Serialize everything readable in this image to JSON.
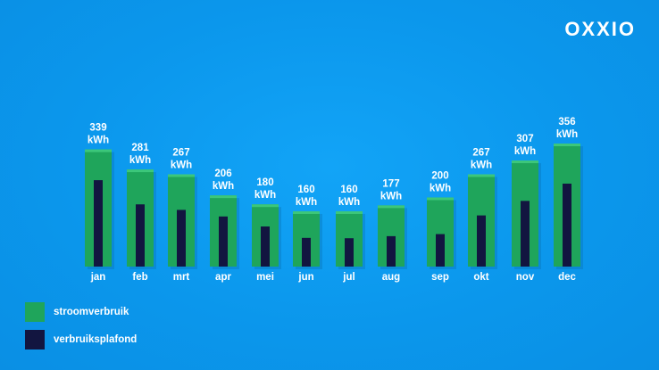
{
  "brand": {
    "logo_text": "OXXIO"
  },
  "colors": {
    "background": "#0b97ec",
    "consumption": "#1fa55b",
    "ceiling": "#121540",
    "text": "#ffffff"
  },
  "legend": [
    {
      "label": "stroomverbruik",
      "color": "#1fa55b"
    },
    {
      "label": "verbruiksplafond",
      "color": "#121540"
    }
  ],
  "chart_data": {
    "type": "bar",
    "categories": [
      "jan",
      "feb",
      "mrt",
      "apr",
      "mei",
      "jun",
      "jul",
      "aug",
      "sep",
      "okt",
      "nov",
      "dec"
    ],
    "unit": "kWh",
    "series": [
      {
        "name": "stroomverbruik",
        "values": [
          339,
          281,
          267,
          206,
          180,
          160,
          160,
          177,
          200,
          267,
          307,
          356
        ]
      },
      {
        "name": "verbruiksplafond",
        "values": [
          250,
          180,
          164,
          145,
          116,
          83,
          82,
          88,
          94,
          148,
          190,
          240
        ]
      }
    ],
    "data_labels": [
      "339",
      "281",
      "267",
      "206",
      "180",
      "160",
      "160",
      "177",
      "200",
      "267",
      "307",
      "356"
    ],
    "ylim": [
      0,
      360
    ],
    "grid": false,
    "legend_position": "bottom-left"
  }
}
